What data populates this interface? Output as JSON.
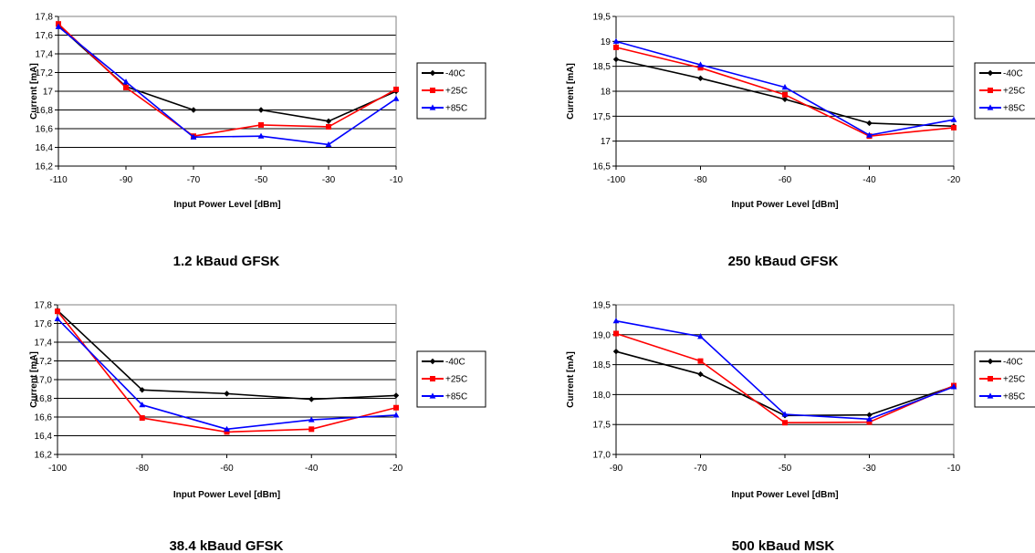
{
  "chart_data": [
    {
      "type": "line",
      "caption": "1.2 kBaud GFSK",
      "xlabel": "Input Power Level [dBm]",
      "ylabel": "Current [mA]",
      "x": [
        -110,
        -90,
        -70,
        -50,
        -30,
        -10
      ],
      "xticks": [
        "-110",
        "-90",
        "-70",
        "-50",
        "-30",
        "-10"
      ],
      "ylim": [
        16.2,
        17.8
      ],
      "yticks": [
        "16,2",
        "16,4",
        "16,6",
        "16,8",
        "17",
        "17,2",
        "17,4",
        "17,6",
        "17,8"
      ],
      "grid": true,
      "legend_position": "right",
      "series": [
        {
          "name": "-40C",
          "color": "#000000",
          "marker": "diamond",
          "values": [
            17.7,
            17.05,
            16.8,
            16.8,
            16.68,
            17.0
          ]
        },
        {
          "name": "+25C",
          "color": "#ff0000",
          "marker": "square",
          "values": [
            17.72,
            17.04,
            16.52,
            16.64,
            16.62,
            17.02
          ]
        },
        {
          "name": "+85C",
          "color": "#0000ff",
          "marker": "triangle",
          "values": [
            17.69,
            17.1,
            16.51,
            16.52,
            16.43,
            16.92
          ]
        }
      ]
    },
    {
      "type": "line",
      "caption": "250 kBaud GFSK",
      "xlabel": "Input Power Level [dBm]",
      "ylabel": "Current [mA]",
      "x": [
        -100,
        -80,
        -60,
        -40,
        -20
      ],
      "xticks": [
        "-100",
        "-80",
        "-60",
        "-40",
        "-20"
      ],
      "ylim": [
        16.5,
        19.5
      ],
      "yticks": [
        "16,5",
        "17",
        "17,5",
        "18",
        "18,5",
        "19",
        "19,5"
      ],
      "grid": true,
      "legend_position": "right",
      "series": [
        {
          "name": "-40C",
          "color": "#000000",
          "marker": "diamond",
          "values": [
            18.64,
            18.26,
            17.84,
            17.36,
            17.3
          ]
        },
        {
          "name": "+25C",
          "color": "#ff0000",
          "marker": "square",
          "values": [
            18.88,
            18.47,
            17.93,
            17.1,
            17.27
          ]
        },
        {
          "name": "+85C",
          "color": "#0000ff",
          "marker": "triangle",
          "values": [
            19.0,
            18.53,
            18.08,
            17.12,
            17.43
          ]
        }
      ]
    },
    {
      "type": "line",
      "caption": "38.4 kBaud GFSK",
      "xlabel": "Input Power Level [dBm]",
      "ylabel": "Current [mA]",
      "x": [
        -100,
        -80,
        -60,
        -40,
        -20
      ],
      "xticks": [
        "-100",
        "-80",
        "-60",
        "-40",
        "-20"
      ],
      "ylim": [
        16.2,
        17.8
      ],
      "yticks": [
        "16,2",
        "16,4",
        "16,6",
        "16,8",
        "17,0",
        "17,2",
        "17,4",
        "17,6",
        "17,8"
      ],
      "grid": true,
      "legend_position": "right",
      "series": [
        {
          "name": "-40C",
          "color": "#000000",
          "marker": "diamond",
          "values": [
            17.74,
            16.89,
            16.85,
            16.79,
            16.83
          ]
        },
        {
          "name": "+25C",
          "color": "#ff0000",
          "marker": "square",
          "values": [
            17.73,
            16.59,
            16.44,
            16.47,
            16.7
          ]
        },
        {
          "name": "+85C",
          "color": "#0000ff",
          "marker": "triangle",
          "values": [
            17.65,
            16.73,
            16.47,
            16.57,
            16.62
          ]
        }
      ]
    },
    {
      "type": "line",
      "caption": "500 kBaud MSK",
      "xlabel": "Input Power Level [dBm]",
      "ylabel": "Current [mA]",
      "x": [
        -90,
        -70,
        -50,
        -30,
        -10
      ],
      "xticks": [
        "-90",
        "-70",
        "-50",
        "-30",
        "-10"
      ],
      "ylim": [
        17.0,
        19.5
      ],
      "yticks": [
        "17,0",
        "17,5",
        "18,0",
        "18,5",
        "19,0",
        "19,5"
      ],
      "grid": true,
      "legend_position": "right",
      "series": [
        {
          "name": "-40C",
          "color": "#000000",
          "marker": "diamond",
          "values": [
            18.72,
            18.34,
            17.65,
            17.66,
            18.14
          ]
        },
        {
          "name": "+25C",
          "color": "#ff0000",
          "marker": "square",
          "values": [
            19.02,
            18.56,
            17.53,
            17.54,
            18.15
          ]
        },
        {
          "name": "+85C",
          "color": "#0000ff",
          "marker": "triangle",
          "values": [
            19.23,
            18.97,
            17.67,
            17.59,
            18.13
          ]
        }
      ]
    }
  ]
}
